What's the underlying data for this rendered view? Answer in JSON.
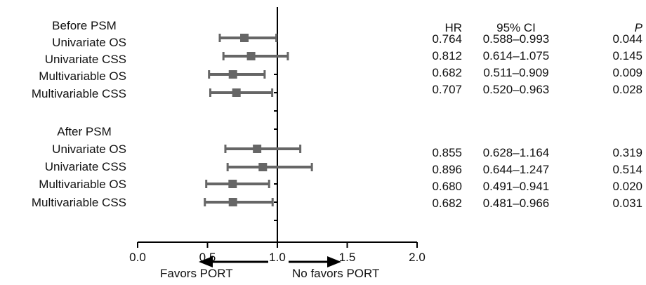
{
  "chart_data": {
    "type": "forest",
    "xlim": [
      0.0,
      2.0
    ],
    "xticks": [
      0.0,
      0.5,
      1.0,
      1.5,
      2.0
    ],
    "xtick_labels": [
      "0.0",
      "0.5",
      "1.0",
      "1.5",
      "2.0"
    ],
    "reference_line": 1.0,
    "column_headers": {
      "hr": "HR",
      "ci": "95% CI",
      "p": "P"
    },
    "groups": [
      {
        "title": "Before PSM",
        "rows": [
          {
            "label": "Univariate OS",
            "hr": 0.764,
            "lo": 0.588,
            "hi": 0.993,
            "hr_text": "0.764",
            "ci_text": "0.588–0.993",
            "p_text": "0.044"
          },
          {
            "label": "Univariate CSS",
            "hr": 0.812,
            "lo": 0.614,
            "hi": 1.075,
            "hr_text": "0.812",
            "ci_text": "0.614–1.075",
            "p_text": "0.145"
          },
          {
            "label": "Multivariable OS",
            "hr": 0.682,
            "lo": 0.511,
            "hi": 0.909,
            "hr_text": "0.682",
            "ci_text": "0.511–0.909",
            "p_text": "0.009"
          },
          {
            "label": "Multivariable CSS",
            "hr": 0.707,
            "lo": 0.52,
            "hi": 0.963,
            "hr_text": "0.707",
            "ci_text": "0.520–0.963",
            "p_text": "0.028"
          }
        ]
      },
      {
        "title": "After PSM",
        "rows": [
          {
            "label": "Univariate OS",
            "hr": 0.855,
            "lo": 0.628,
            "hi": 1.164,
            "hr_text": "0.855",
            "ci_text": "0.628–1.164",
            "p_text": "0.319"
          },
          {
            "label": "Univariate CSS",
            "hr": 0.896,
            "lo": 0.644,
            "hi": 1.247,
            "hr_text": "0.896",
            "ci_text": "0.644–1.247",
            "p_text": "0.514"
          },
          {
            "label": "Multivariable OS",
            "hr": 0.68,
            "lo": 0.491,
            "hi": 0.941,
            "hr_text": "0.680",
            "ci_text": "0.491–0.941",
            "p_text": "0.020"
          },
          {
            "label": "Multivariable CSS",
            "hr": 0.682,
            "lo": 0.481,
            "hi": 0.966,
            "hr_text": "0.682",
            "ci_text": "0.481–0.966",
            "p_text": "0.031"
          }
        ]
      }
    ],
    "direction_labels": {
      "left": "Favors PORT",
      "right": "No favors PORT"
    },
    "marker_color": "#666666",
    "axis_color": "#000000",
    "grid": false,
    "legend": "none"
  }
}
